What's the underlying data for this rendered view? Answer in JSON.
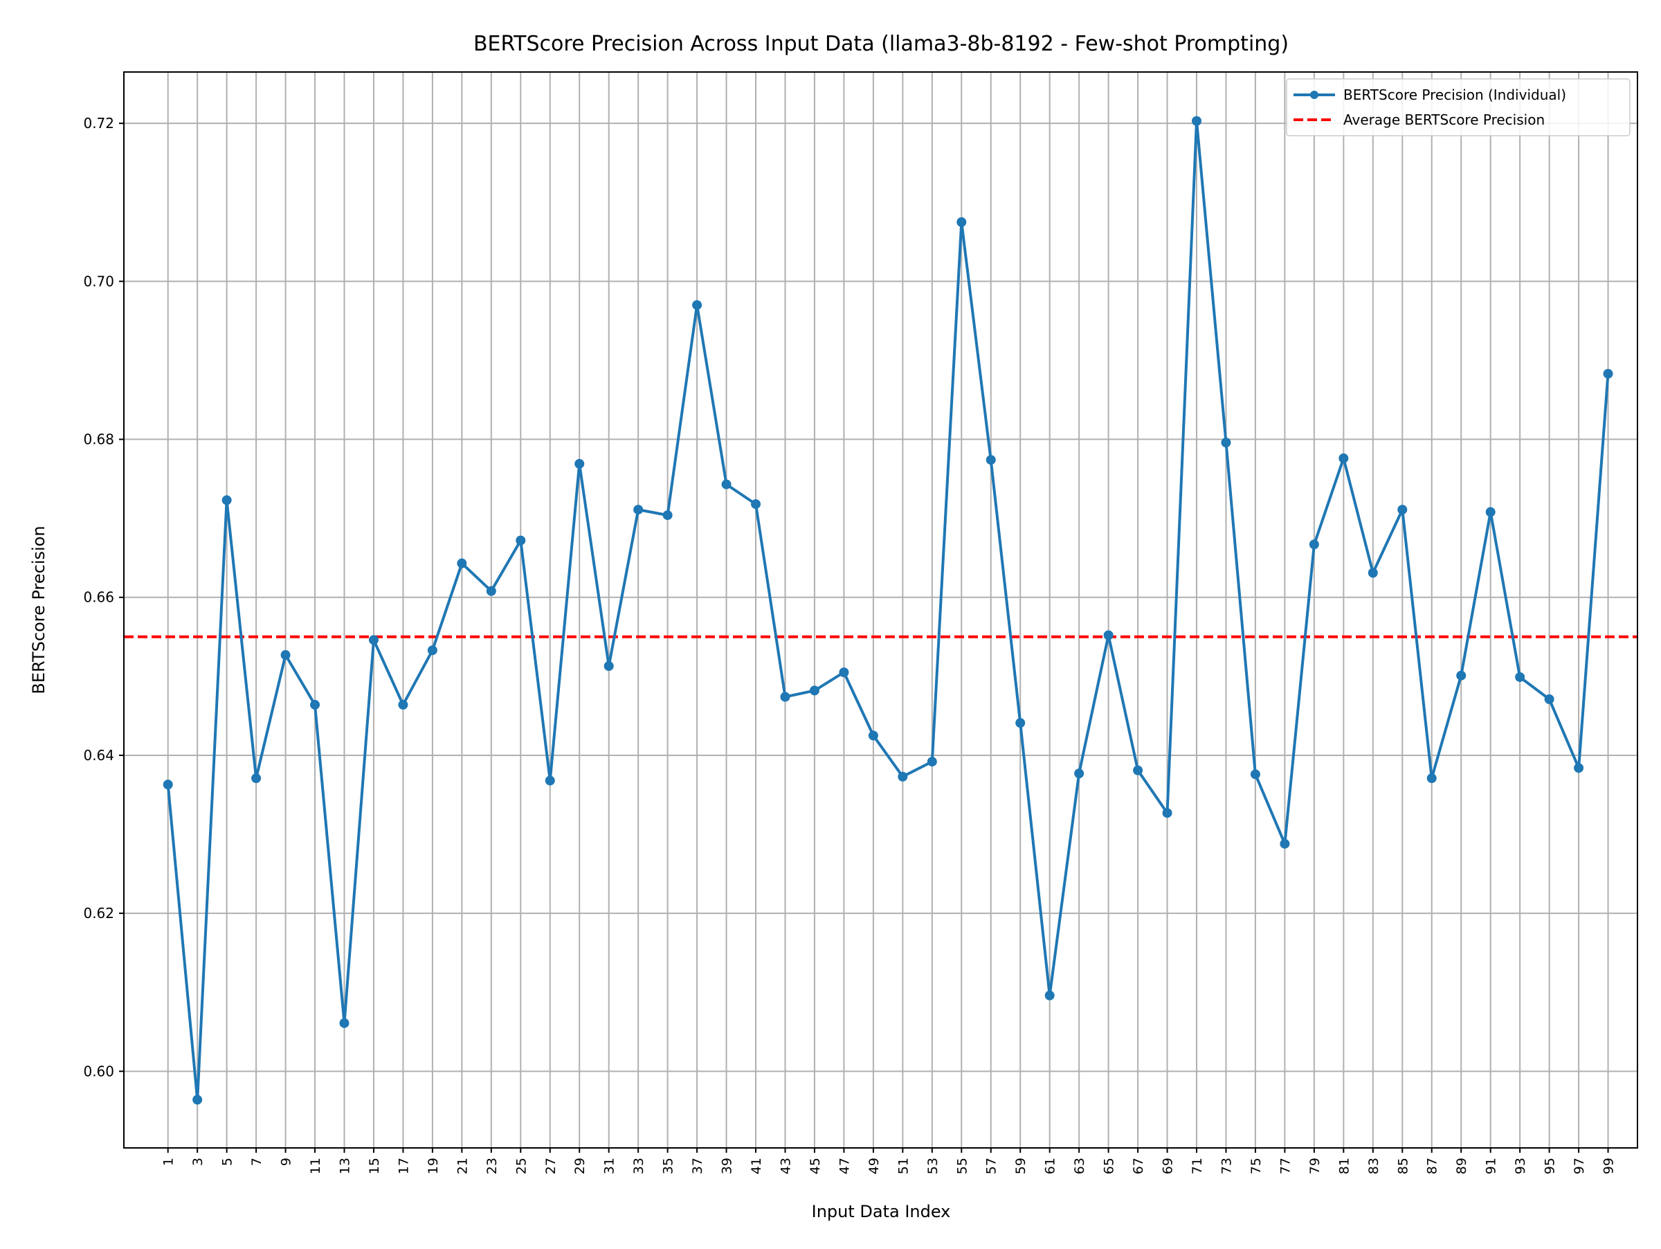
{
  "chart_data": {
    "type": "line",
    "title": "BERTScore Precision Across Input Data (llama3-8b-8192 - Few-shot Prompting)",
    "xlabel": "Input Data Index",
    "ylabel": "BERTScore Precision",
    "xlim": [
      -2.0,
      101.0
    ],
    "ylim": [
      0.5903,
      0.7265
    ],
    "grid": true,
    "legend_position": "top-right",
    "x_ticks": [
      1,
      3,
      5,
      7,
      9,
      11,
      13,
      15,
      17,
      19,
      21,
      23,
      25,
      27,
      29,
      31,
      33,
      35,
      37,
      39,
      41,
      43,
      45,
      47,
      49,
      51,
      53,
      55,
      57,
      59,
      61,
      63,
      65,
      67,
      69,
      71,
      73,
      75,
      77,
      79,
      81,
      83,
      85,
      87,
      89,
      91,
      93,
      95,
      97,
      99
    ],
    "y_ticks": [
      0.6,
      0.62,
      0.64,
      0.66,
      0.68,
      0.7,
      0.72
    ],
    "y_tick_labels": [
      "0.60",
      "0.62",
      "0.64",
      "0.66",
      "0.68",
      "0.70",
      "0.72"
    ],
    "series": [
      {
        "name": "BERTScore Precision (Individual)",
        "color": "#1f77b4",
        "style": "solid-with-markers",
        "x": [
          1,
          3,
          5,
          7,
          9,
          11,
          13,
          15,
          17,
          19,
          21,
          23,
          25,
          27,
          29,
          31,
          33,
          35,
          37,
          39,
          41,
          43,
          45,
          47,
          49,
          51,
          53,
          55,
          57,
          59,
          61,
          63,
          65,
          67,
          69,
          71,
          73,
          75,
          77,
          79,
          81,
          83,
          85,
          87,
          89,
          91,
          93,
          95,
          97,
          99
        ],
        "values": [
          0.6363,
          0.5964,
          0.6723,
          0.6371,
          0.6527,
          0.6464,
          0.6061,
          0.6546,
          0.6464,
          0.6533,
          0.6643,
          0.6608,
          0.6672,
          0.6368,
          0.6769,
          0.6513,
          0.6711,
          0.6704,
          0.697,
          0.6743,
          0.6718,
          0.6474,
          0.6482,
          0.6505,
          0.6425,
          0.6373,
          0.6392,
          0.7075,
          0.6774,
          0.6441,
          0.6096,
          0.6377,
          0.6552,
          0.6381,
          0.6327,
          0.7203,
          0.6796,
          0.6376,
          0.6288,
          0.6667,
          0.6776,
          0.6631,
          0.6711,
          0.6371,
          0.6501,
          0.6708,
          0.6499,
          0.6471,
          0.6384,
          0.6883
        ]
      },
      {
        "name": "Average BERTScore Precision",
        "color": "#ff0000",
        "style": "dashed",
        "y": 0.655
      }
    ]
  }
}
